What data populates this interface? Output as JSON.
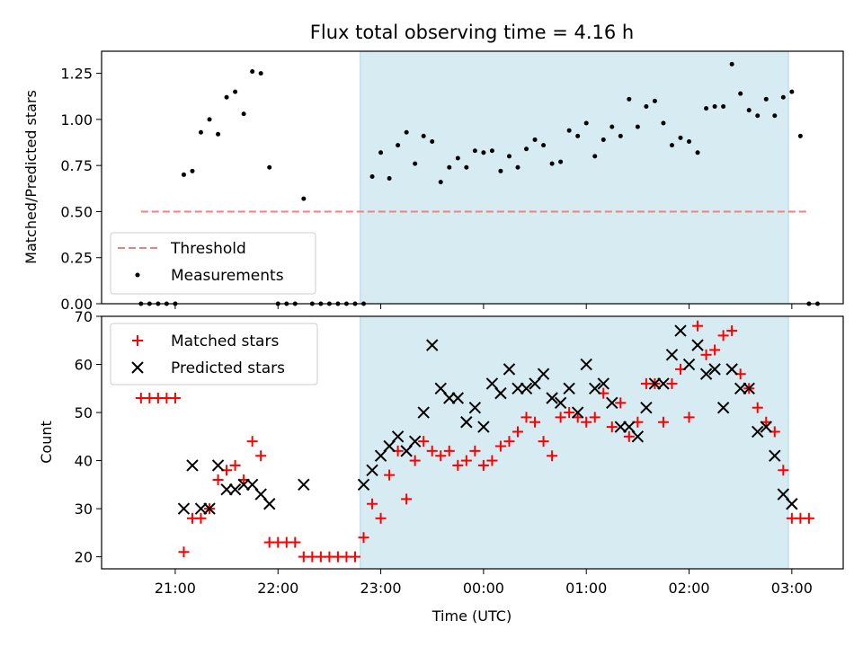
{
  "chart_data": [
    {
      "type": "scatter",
      "title": "Flux total observing time = 4.16 h",
      "xlabel": "",
      "ylabel": "Matched/Predicted stars",
      "ylim": [
        0,
        1.37
      ],
      "yticks": [
        "0.00",
        "0.25",
        "0.50",
        "0.75",
        "1.00",
        "1.25"
      ],
      "ytick_values": [
        0,
        0.25,
        0.5,
        0.75,
        1.0,
        1.25
      ],
      "xlim_minutes_label": "shared time axis",
      "shaded_region": {
        "start": "22:48",
        "end": "02:58",
        "color": "#add8e6"
      },
      "threshold": {
        "value": 0.5,
        "start": "20:40",
        "end": "03:10",
        "color": "#f08080"
      },
      "legend": {
        "placement": "lower-left",
        "entries": [
          "Threshold",
          "Measurements"
        ]
      },
      "series": [
        {
          "name": "Measurements",
          "color": "#000000",
          "points": [
            [
              "20:40",
              0
            ],
            [
              "20:45",
              0
            ],
            [
              "20:50",
              0
            ],
            [
              "20:55",
              0
            ],
            [
              "21:00",
              0
            ],
            [
              "21:05",
              0.7
            ],
            [
              "21:10",
              0.72
            ],
            [
              "21:15",
              0.93
            ],
            [
              "21:20",
              1.0
            ],
            [
              "21:25",
              0.92
            ],
            [
              "21:30",
              1.12
            ],
            [
              "21:35",
              1.15
            ],
            [
              "21:40",
              1.03
            ],
            [
              "21:45",
              1.26
            ],
            [
              "21:50",
              1.25
            ],
            [
              "21:55",
              0.74
            ],
            [
              "22:00",
              0
            ],
            [
              "22:05",
              0
            ],
            [
              "22:10",
              0
            ],
            [
              "22:15",
              0.57
            ],
            [
              "22:20",
              0
            ],
            [
              "22:25",
              0
            ],
            [
              "22:30",
              0
            ],
            [
              "22:35",
              0
            ],
            [
              "22:40",
              0
            ],
            [
              "22:45",
              0
            ],
            [
              "22:50",
              0
            ],
            [
              "22:55",
              0.69
            ],
            [
              "23:00",
              0.82
            ],
            [
              "23:05",
              0.68
            ],
            [
              "23:10",
              0.86
            ],
            [
              "23:15",
              0.93
            ],
            [
              "23:20",
              0.76
            ],
            [
              "23:25",
              0.91
            ],
            [
              "23:30",
              0.88
            ],
            [
              "23:35",
              0.66
            ],
            [
              "23:40",
              0.74
            ],
            [
              "23:45",
              0.79
            ],
            [
              "23:50",
              0.74
            ],
            [
              "23:55",
              0.83
            ],
            [
              "00:00",
              0.82
            ],
            [
              "00:05",
              0.83
            ],
            [
              "00:10",
              0.72
            ],
            [
              "00:15",
              0.8
            ],
            [
              "00:20",
              0.74
            ],
            [
              "00:25",
              0.84
            ],
            [
              "00:30",
              0.89
            ],
            [
              "00:35",
              0.86
            ],
            [
              "00:40",
              0.76
            ],
            [
              "00:45",
              0.77
            ],
            [
              "00:50",
              0.94
            ],
            [
              "00:55",
              0.91
            ],
            [
              "01:00",
              0.98
            ],
            [
              "01:05",
              0.8
            ],
            [
              "01:10",
              0.89
            ],
            [
              "01:15",
              0.96
            ],
            [
              "01:20",
              0.91
            ],
            [
              "01:25",
              1.11
            ],
            [
              "01:30",
              0.96
            ],
            [
              "01:35",
              1.07
            ],
            [
              "01:40",
              1.1
            ],
            [
              "01:45",
              0.98
            ],
            [
              "01:50",
              0.86
            ],
            [
              "01:55",
              0.9
            ],
            [
              "02:00",
              0.88
            ],
            [
              "02:05",
              0.82
            ],
            [
              "02:10",
              1.06
            ],
            [
              "02:15",
              1.07
            ],
            [
              "02:20",
              1.07
            ],
            [
              "02:25",
              1.3
            ],
            [
              "02:30",
              1.14
            ],
            [
              "02:35",
              1.05
            ],
            [
              "02:40",
              1.02
            ],
            [
              "02:45",
              1.11
            ],
            [
              "02:50",
              1.02
            ],
            [
              "02:55",
              1.12
            ],
            [
              "03:00",
              1.15
            ],
            [
              "03:05",
              0.91
            ],
            [
              "03:10",
              0
            ],
            [
              "03:15",
              0
            ]
          ]
        }
      ]
    },
    {
      "type": "scatter",
      "title": "",
      "xlabel": "Time (UTC)",
      "ylabel": "Count",
      "ylim": [
        17.5,
        70
      ],
      "yticks": [
        "20",
        "30",
        "40",
        "50",
        "60",
        "70"
      ],
      "ytick_values": [
        20,
        30,
        40,
        50,
        60,
        70
      ],
      "xticks": [
        "21:00",
        "22:00",
        "23:00",
        "00:00",
        "01:00",
        "02:00",
        "03:00"
      ],
      "shaded_region": {
        "start": "22:48",
        "end": "02:58",
        "color": "#add8e6"
      },
      "legend": {
        "placement": "upper-left",
        "entries": [
          "Matched stars",
          "Predicted stars"
        ]
      },
      "series": [
        {
          "name": "Matched stars",
          "marker": "+",
          "color": "#ff0000",
          "points": [
            [
              "20:40",
              53
            ],
            [
              "20:45",
              53
            ],
            [
              "20:50",
              53
            ],
            [
              "20:55",
              53
            ],
            [
              "21:00",
              53
            ],
            [
              "21:05",
              21
            ],
            [
              "21:10",
              28
            ],
            [
              "21:15",
              28
            ],
            [
              "21:20",
              30
            ],
            [
              "21:25",
              36
            ],
            [
              "21:30",
              38
            ],
            [
              "21:35",
              39
            ],
            [
              "21:40",
              36
            ],
            [
              "21:45",
              44
            ],
            [
              "21:50",
              41
            ],
            [
              "21:55",
              23
            ],
            [
              "22:00",
              23
            ],
            [
              "22:05",
              23
            ],
            [
              "22:10",
              23
            ],
            [
              "22:15",
              20
            ],
            [
              "22:20",
              20
            ],
            [
              "22:25",
              20
            ],
            [
              "22:30",
              20
            ],
            [
              "22:35",
              20
            ],
            [
              "22:40",
              20
            ],
            [
              "22:45",
              20
            ],
            [
              "22:50",
              24
            ],
            [
              "22:55",
              31
            ],
            [
              "23:00",
              28
            ],
            [
              "23:05",
              37
            ],
            [
              "23:10",
              42
            ],
            [
              "23:15",
              32
            ],
            [
              "23:20",
              40
            ],
            [
              "23:25",
              44
            ],
            [
              "23:30",
              42
            ],
            [
              "23:35",
              41
            ],
            [
              "23:40",
              42
            ],
            [
              "23:45",
              39
            ],
            [
              "23:50",
              40
            ],
            [
              "23:55",
              42
            ],
            [
              "00:00",
              39
            ],
            [
              "00:05",
              40
            ],
            [
              "00:10",
              43
            ],
            [
              "00:15",
              44
            ],
            [
              "00:20",
              46
            ],
            [
              "00:25",
              49
            ],
            [
              "00:30",
              48
            ],
            [
              "00:35",
              44
            ],
            [
              "00:40",
              41
            ],
            [
              "00:45",
              49
            ],
            [
              "00:50",
              50
            ],
            [
              "00:55",
              49
            ],
            [
              "01:00",
              48
            ],
            [
              "01:05",
              49
            ],
            [
              "01:10",
              54
            ],
            [
              "01:15",
              47
            ],
            [
              "01:20",
              52
            ],
            [
              "01:25",
              45
            ],
            [
              "01:30",
              48
            ],
            [
              "01:35",
              56
            ],
            [
              "01:40",
              56
            ],
            [
              "01:45",
              48
            ],
            [
              "01:50",
              56
            ],
            [
              "01:55",
              59
            ],
            [
              "02:00",
              49
            ],
            [
              "02:05",
              68
            ],
            [
              "02:10",
              62
            ],
            [
              "02:15",
              63
            ],
            [
              "02:20",
              66
            ],
            [
              "02:25",
              67
            ],
            [
              "02:30",
              58
            ],
            [
              "02:35",
              55
            ],
            [
              "02:40",
              51
            ],
            [
              "02:45",
              48
            ],
            [
              "02:50",
              46
            ],
            [
              "02:55",
              38
            ],
            [
              "03:00",
              28
            ],
            [
              "03:05",
              28
            ],
            [
              "03:10",
              28
            ]
          ]
        },
        {
          "name": "Predicted stars",
          "marker": "x",
          "color": "#000000",
          "points": [
            [
              "21:05",
              30
            ],
            [
              "21:10",
              39
            ],
            [
              "21:15",
              30
            ],
            [
              "21:20",
              30
            ],
            [
              "21:25",
              39
            ],
            [
              "21:30",
              34
            ],
            [
              "21:35",
              34
            ],
            [
              "21:40",
              35
            ],
            [
              "21:45",
              35
            ],
            [
              "21:50",
              33
            ],
            [
              "21:55",
              31
            ],
            [
              "22:15",
              35
            ],
            [
              "22:50",
              35
            ],
            [
              "22:55",
              38
            ],
            [
              "23:00",
              41
            ],
            [
              "23:05",
              43
            ],
            [
              "23:10",
              45
            ],
            [
              "23:15",
              42
            ],
            [
              "23:20",
              44
            ],
            [
              "23:25",
              50
            ],
            [
              "23:30",
              64
            ],
            [
              "23:35",
              55
            ],
            [
              "23:40",
              53
            ],
            [
              "23:45",
              53
            ],
            [
              "23:50",
              48
            ],
            [
              "23:55",
              51
            ],
            [
              "00:00",
              47
            ],
            [
              "00:05",
              56
            ],
            [
              "00:10",
              54
            ],
            [
              "00:15",
              59
            ],
            [
              "00:20",
              55
            ],
            [
              "00:25",
              55
            ],
            [
              "00:30",
              56
            ],
            [
              "00:35",
              58
            ],
            [
              "00:40",
              53
            ],
            [
              "00:45",
              52
            ],
            [
              "00:50",
              55
            ],
            [
              "00:55",
              50
            ],
            [
              "01:00",
              60
            ],
            [
              "01:05",
              55
            ],
            [
              "01:10",
              56
            ],
            [
              "01:15",
              52
            ],
            [
              "01:20",
              47
            ],
            [
              "01:25",
              47
            ],
            [
              "01:30",
              45
            ],
            [
              "01:35",
              51
            ],
            [
              "01:40",
              56
            ],
            [
              "01:45",
              56
            ],
            [
              "01:50",
              62
            ],
            [
              "01:55",
              67
            ],
            [
              "02:00",
              60
            ],
            [
              "02:05",
              64
            ],
            [
              "02:10",
              58
            ],
            [
              "02:15",
              59
            ],
            [
              "02:20",
              51
            ],
            [
              "02:25",
              59
            ],
            [
              "02:30",
              55
            ],
            [
              "02:35",
              55
            ],
            [
              "02:40",
              46
            ],
            [
              "02:45",
              47
            ],
            [
              "02:50",
              41
            ],
            [
              "02:55",
              33
            ],
            [
              "03:00",
              31
            ]
          ]
        }
      ]
    }
  ]
}
